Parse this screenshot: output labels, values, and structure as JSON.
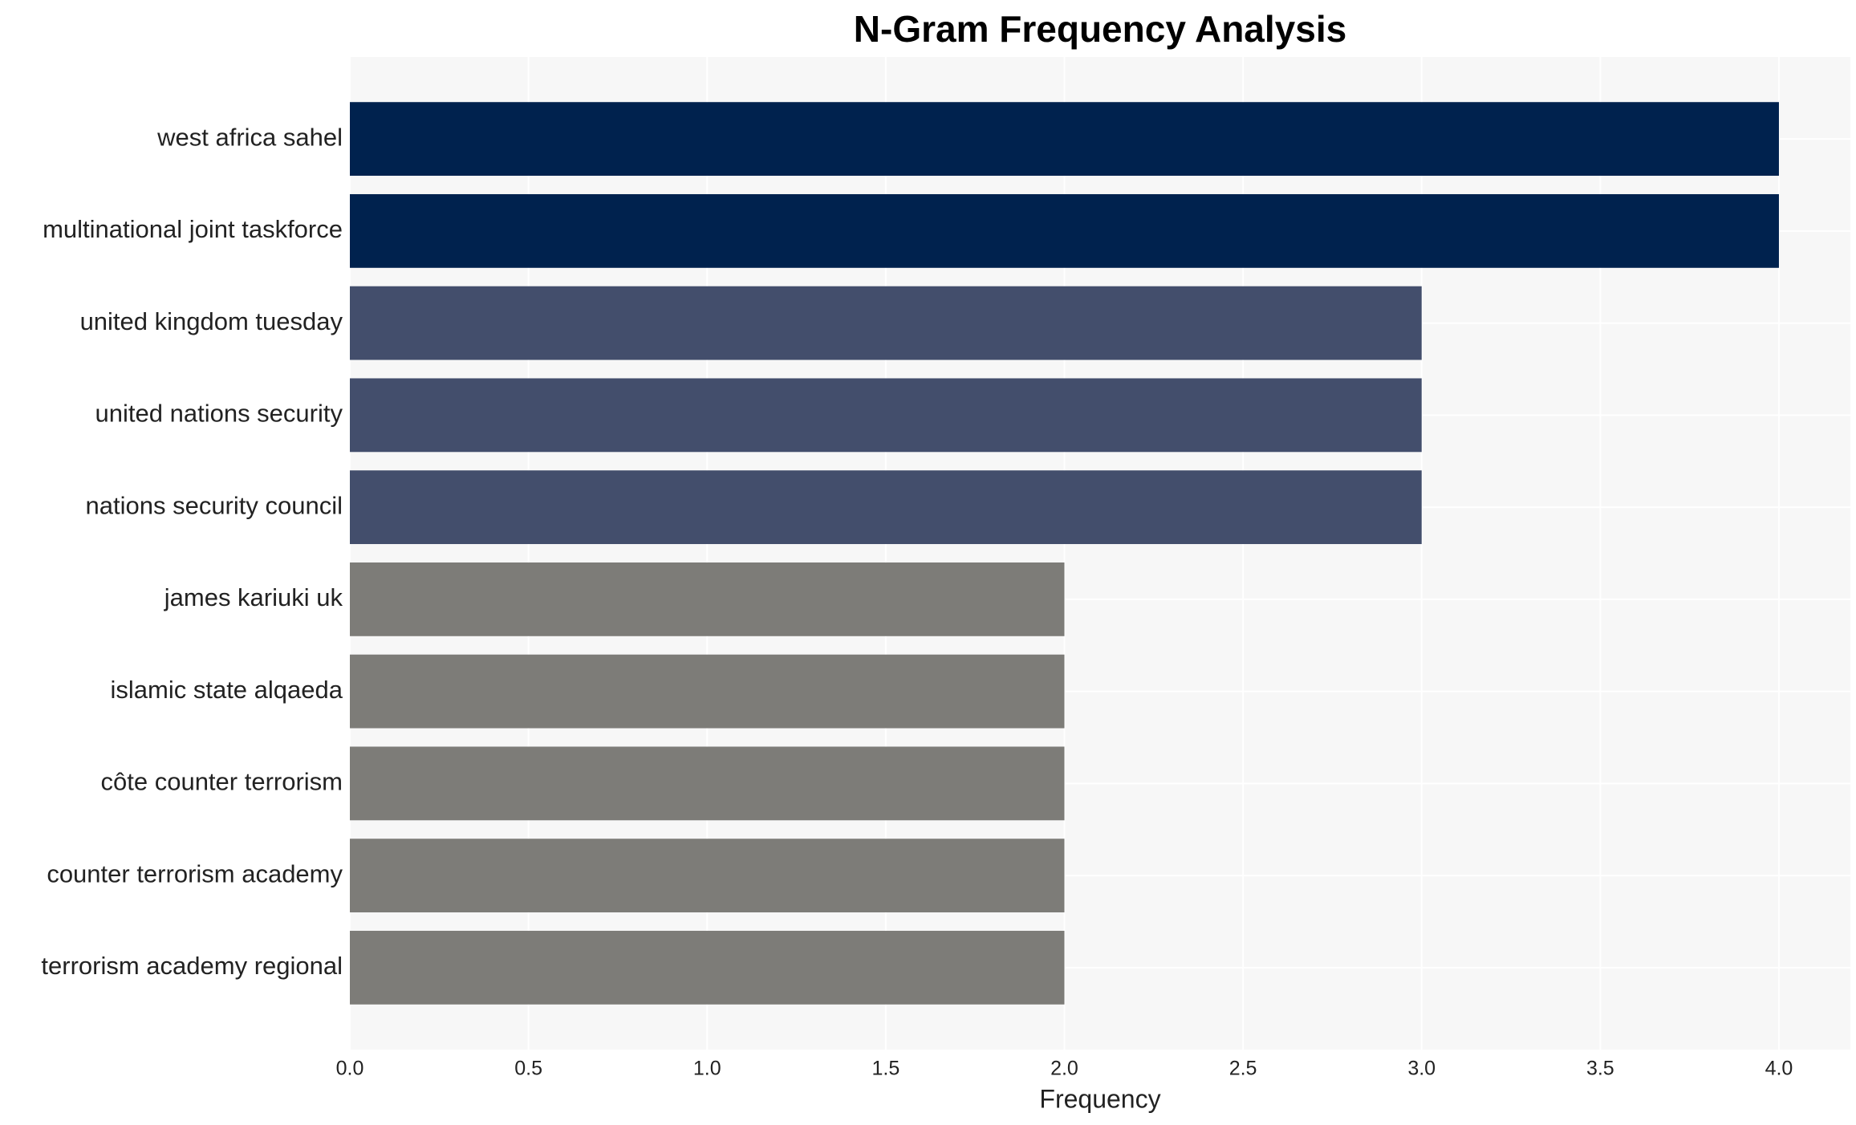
{
  "chart_data": {
    "type": "barh",
    "title": "N-Gram Frequency Analysis",
    "x_label": "Frequency",
    "categories": [
      "west africa sahel",
      "multinational joint taskforce",
      "united kingdom tuesday",
      "united nations security",
      "nations security council",
      "james kariuki uk",
      "islamic state alqaeda",
      "côte counter terrorism",
      "counter terrorism academy",
      "terrorism academy regional"
    ],
    "values": [
      4,
      4,
      3,
      3,
      3,
      2,
      2,
      2,
      2,
      2
    ],
    "colors": [
      "#00224e",
      "#00224e",
      "#434e6c",
      "#434e6c",
      "#434e6c",
      "#7d7c78",
      "#7d7c78",
      "#7d7c78",
      "#7d7c78",
      "#7d7c78"
    ],
    "xlim": [
      0,
      4.2
    ],
    "xticks": [
      {
        "value": 0,
        "label": "0.0"
      },
      0.5,
      {
        "value": 1,
        "label": "1.0"
      },
      1.5,
      {
        "value": 2,
        "label": "2.0"
      },
      2.5,
      {
        "value": 3,
        "label": "3.0"
      },
      3.5,
      {
        "value": 4,
        "label": "4.0"
      }
    ],
    "grid": true
  }
}
